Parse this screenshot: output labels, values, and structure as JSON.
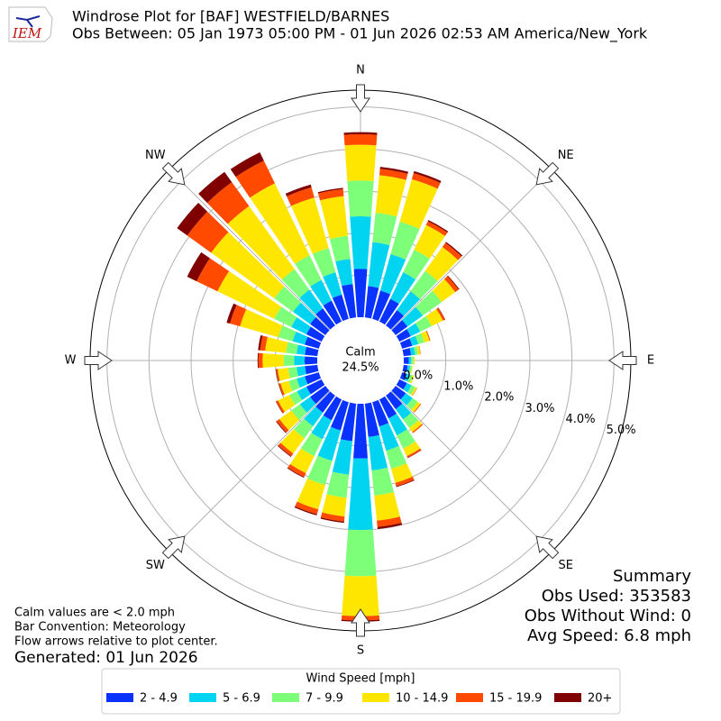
{
  "chart_data": {
    "type": "windrose",
    "title": "Windrose Plot for [BAF] WESTFIELD/BARNES",
    "subtitle": "Obs Between: 05 Jan 1973 05:00 PM - 01 Jun 2026 02:53 AM America/New_York",
    "logo_text": "IEM",
    "calm_label": "Calm",
    "calm_value": "24.5%",
    "x": [
      0,
      10,
      20,
      30,
      40,
      50,
      60,
      70,
      80,
      90,
      100,
      110,
      120,
      130,
      140,
      150,
      160,
      170,
      180,
      190,
      200,
      210,
      220,
      230,
      240,
      250,
      260,
      270,
      280,
      290,
      300,
      310,
      320,
      330,
      340,
      350
    ],
    "xlim": [
      0,
      360
    ],
    "xticks": [
      {
        "value": 0,
        "label": "N"
      },
      {
        "value": 45,
        "label": "NE"
      },
      {
        "value": 90,
        "label": "E"
      },
      {
        "value": 135,
        "label": "SE"
      },
      {
        "value": 180,
        "label": "S"
      },
      {
        "value": 225,
        "label": "SW"
      },
      {
        "value": 270,
        "label": "W"
      },
      {
        "value": 315,
        "label": "NW"
      }
    ],
    "ylim": [
      0,
      5.4
    ],
    "yticks": [
      {
        "value": 0,
        "label": "0.0%"
      },
      {
        "value": 1,
        "label": "1.0%"
      },
      {
        "value": 2,
        "label": "2.0%"
      },
      {
        "value": 3,
        "label": "3.0%"
      },
      {
        "value": 4,
        "label": "4.0%"
      },
      {
        "value": 5,
        "label": "5.0%"
      }
    ],
    "grid": true,
    "legend_title": "Wind Speed [mph]",
    "series": [
      {
        "name": "2 - 4.9",
        "color": "#0a32ff",
        "values": [
          1.15,
          0.75,
          0.7,
          0.6,
          0.45,
          0.35,
          0.3,
          0.25,
          0.18,
          0.12,
          0.1,
          0.12,
          0.2,
          0.3,
          0.4,
          0.5,
          0.6,
          0.8,
          1.3,
          0.9,
          0.7,
          0.55,
          0.5,
          0.45,
          0.4,
          0.35,
          0.3,
          0.3,
          0.3,
          0.35,
          0.4,
          0.45,
          0.5,
          0.55,
          0.6,
          0.8
        ]
      },
      {
        "name": "5 - 6.9",
        "color": "#00d4f0",
        "values": [
          1.25,
          1.05,
          0.9,
          0.7,
          0.55,
          0.45,
          0.25,
          0.15,
          0.1,
          0.06,
          0.06,
          0.08,
          0.12,
          0.2,
          0.3,
          0.45,
          0.6,
          0.8,
          1.7,
          0.8,
          0.75,
          0.5,
          0.4,
          0.3,
          0.25,
          0.2,
          0.2,
          0.25,
          0.2,
          0.3,
          0.4,
          0.5,
          0.55,
          0.55,
          0.55,
          0.6
        ]
      },
      {
        "name": "7 - 9.9",
        "color": "#7dff7a",
        "values": [
          0.85,
          0.7,
          0.8,
          0.6,
          0.6,
          0.55,
          0.3,
          0.15,
          0.07,
          0.05,
          0.04,
          0.06,
          0.1,
          0.15,
          0.25,
          0.35,
          0.45,
          0.6,
          1.1,
          0.55,
          0.6,
          0.45,
          0.35,
          0.25,
          0.2,
          0.2,
          0.2,
          0.25,
          0.25,
          0.35,
          0.45,
          0.55,
          0.6,
          0.65,
          0.6,
          0.55
        ]
      },
      {
        "name": "10 - 14.9",
        "color": "#ffe600",
        "values": [
          0.85,
          0.9,
          1.05,
          0.65,
          0.7,
          0.4,
          0.3,
          0.13,
          0.05,
          0.03,
          0.02,
          0.04,
          0.04,
          0.08,
          0.12,
          0.2,
          0.35,
          0.6,
          0.95,
          0.45,
          0.6,
          0.45,
          0.45,
          0.35,
          0.3,
          0.2,
          0.25,
          0.5,
          0.5,
          0.95,
          1.5,
          1.85,
          1.85,
          1.9,
          1.25,
          0.95
        ]
      },
      {
        "name": "15 - 19.9",
        "color": "#ff4a00",
        "values": [
          0.25,
          0.15,
          0.15,
          0.1,
          0.12,
          0.1,
          0.05,
          0.02,
          0.01,
          0,
          0,
          0,
          0.01,
          0.02,
          0.03,
          0.04,
          0.08,
          0.15,
          0.1,
          0.12,
          0.12,
          0.1,
          0.08,
          0.08,
          0.05,
          0.04,
          0.04,
          0.1,
          0.12,
          0.25,
          0.55,
          0.7,
          0.7,
          0.6,
          0.25,
          0.17
        ]
      },
      {
        "name": "20+",
        "color": "#800000",
        "values": [
          0.05,
          0.05,
          0.05,
          0.03,
          0.03,
          0.02,
          0.01,
          0,
          0,
          0,
          0,
          0,
          0,
          0,
          0,
          0.01,
          0.02,
          0.05,
          0.03,
          0.03,
          0.03,
          0.02,
          0.02,
          0.02,
          0.01,
          0.01,
          0.01,
          0.02,
          0.05,
          0.08,
          0.25,
          0.3,
          0.3,
          0.22,
          0.07,
          0.03
        ]
      }
    ],
    "summary": [
      "Summary",
      "Obs Used: 353583",
      "Obs Without Wind: 0",
      "Avg Speed: 6.8 mph"
    ],
    "notes": [
      "Calm values are < 2.0 mph",
      "Bar Convention: Meteorology",
      "Flow arrows relative to plot center."
    ],
    "generated": "Generated: 01 Jun 2026"
  }
}
